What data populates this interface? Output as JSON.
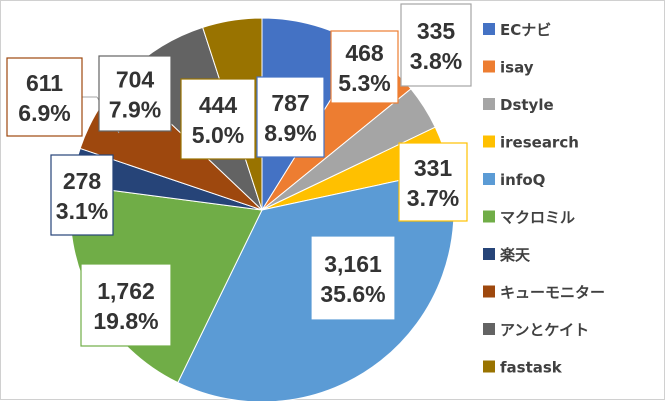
{
  "chart_data": {
    "type": "pie",
    "title": "",
    "legend_position": "right",
    "start_angle": "12 o'clock, clockwise",
    "series": [
      {
        "name": "ECナビ",
        "value": 787,
        "value_label": "787",
        "percent_label": "8.9%",
        "color": "#4472C4"
      },
      {
        "name": "isay",
        "value": 468,
        "value_label": "468",
        "percent_label": "5.3%",
        "color": "#ED7D31"
      },
      {
        "name": "Dstyle",
        "value": 335,
        "value_label": "335",
        "percent_label": "3.8%",
        "color": "#A5A5A5"
      },
      {
        "name": "iresearch",
        "value": 331,
        "value_label": "331",
        "percent_label": "3.7%",
        "color": "#FFC000"
      },
      {
        "name": "infoQ",
        "value": 3161,
        "value_label": "3,161",
        "percent_label": "35.6%",
        "color": "#5B9BD5"
      },
      {
        "name": "マクロミル",
        "value": 1762,
        "value_label": "1,762",
        "percent_label": "19.8%",
        "color": "#70AD47"
      },
      {
        "name": "楽天",
        "value": 278,
        "value_label": "278",
        "percent_label": "3.1%",
        "color": "#264478"
      },
      {
        "name": "キューモニター",
        "value": 611,
        "value_label": "611",
        "percent_label": "6.9%",
        "color": "#9E480E"
      },
      {
        "name": "アンとケイト",
        "value": 704,
        "value_label": "704",
        "percent_label": "7.9%",
        "color": "#636363"
      },
      {
        "name": "fastask",
        "value": 444,
        "value_label": "444",
        "percent_label": "5.0%",
        "color": "#997300"
      }
    ]
  }
}
